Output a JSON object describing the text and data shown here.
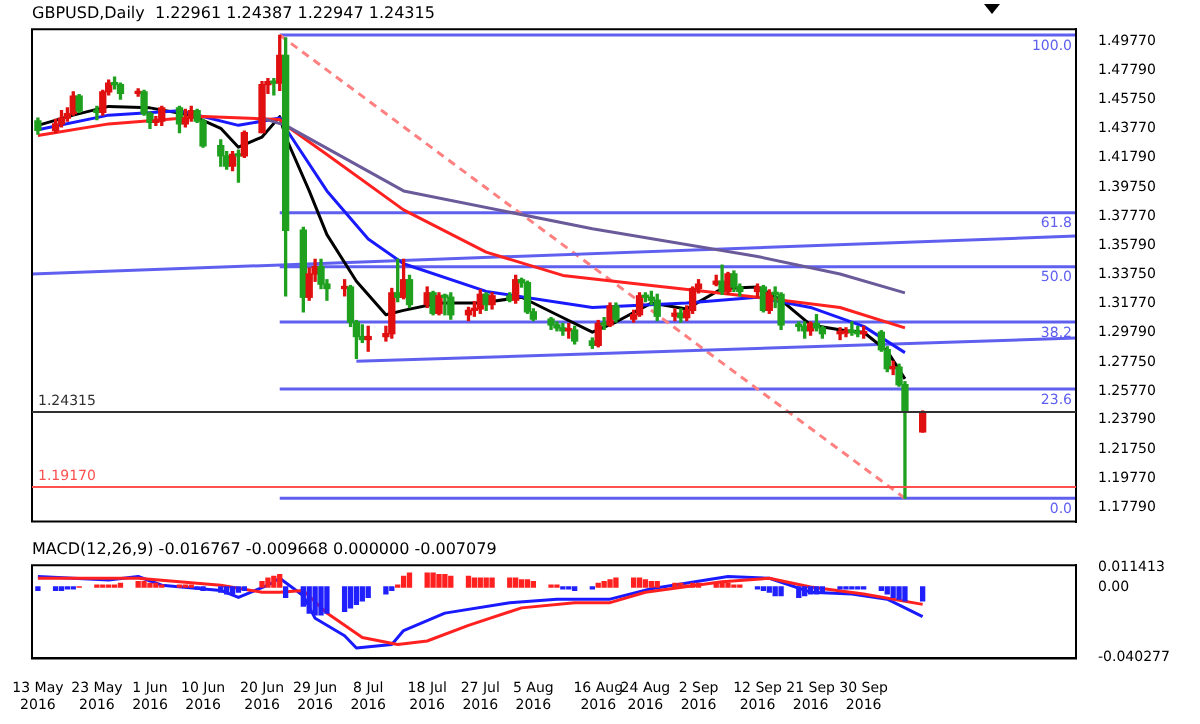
{
  "chart_data": [
    {
      "type": "candlestick",
      "title": "GBPUSD,Daily  1.22961 1.24387 1.22947 1.24315",
      "x": [
        "2016-05-13",
        "2016-05-16",
        "2016-05-17",
        "2016-05-18",
        "2016-05-19",
        "2016-05-20",
        "2016-05-23",
        "2016-05-24",
        "2016-05-25",
        "2016-05-26",
        "2016-05-27",
        "2016-05-30",
        "2016-05-31",
        "2016-06-01",
        "2016-06-02",
        "2016-06-03",
        "2016-06-06",
        "2016-06-07",
        "2016-06-08",
        "2016-06-09",
        "2016-06-10",
        "2016-06-13",
        "2016-06-14",
        "2016-06-15",
        "2016-06-16",
        "2016-06-17",
        "2016-06-20",
        "2016-06-21",
        "2016-06-22",
        "2016-06-23",
        "2016-06-24",
        "2016-06-27",
        "2016-06-28",
        "2016-06-29",
        "2016-06-30",
        "2016-07-01",
        "2016-07-04",
        "2016-07-05",
        "2016-07-06",
        "2016-07-07",
        "2016-07-08",
        "2016-07-11",
        "2016-07-12",
        "2016-07-13",
        "2016-07-14",
        "2016-07-15",
        "2016-07-18",
        "2016-07-19",
        "2016-07-20",
        "2016-07-21",
        "2016-07-22",
        "2016-07-25",
        "2016-07-26",
        "2016-07-27",
        "2016-07-28",
        "2016-07-29",
        "2016-08-01",
        "2016-08-02",
        "2016-08-03",
        "2016-08-04",
        "2016-08-05",
        "2016-08-08",
        "2016-08-09",
        "2016-08-10",
        "2016-08-11",
        "2016-08-12",
        "2016-08-15",
        "2016-08-16",
        "2016-08-17",
        "2016-08-18",
        "2016-08-19",
        "2016-08-22",
        "2016-08-23",
        "2016-08-24",
        "2016-08-25",
        "2016-08-26",
        "2016-08-29",
        "2016-08-30",
        "2016-08-31",
        "2016-09-01",
        "2016-09-02",
        "2016-09-05",
        "2016-09-06",
        "2016-09-07",
        "2016-09-08",
        "2016-09-09",
        "2016-09-12",
        "2016-09-13",
        "2016-09-14",
        "2016-09-15",
        "2016-09-16",
        "2016-09-19",
        "2016-09-20",
        "2016-09-21",
        "2016-09-22",
        "2016-09-23",
        "2016-09-26",
        "2016-09-27",
        "2016-09-28",
        "2016-09-29",
        "2016-09-30",
        "2016-10-03",
        "2016-10-04",
        "2016-10-05",
        "2016-10-06",
        "2016-10-07",
        "2016-10-10"
      ],
      "ohlc": [
        [
          1.443,
          1.445,
          1.434,
          1.4365
        ],
        [
          1.4365,
          1.444,
          1.435,
          1.441
        ],
        [
          1.441,
          1.45,
          1.439,
          1.445
        ],
        [
          1.445,
          1.452,
          1.443,
          1.448
        ],
        [
          1.448,
          1.463,
          1.447,
          1.46
        ],
        [
          1.46,
          1.461,
          1.449,
          1.45
        ],
        [
          1.45,
          1.453,
          1.444,
          1.449
        ],
        [
          1.449,
          1.464,
          1.447,
          1.463
        ],
        [
          1.463,
          1.471,
          1.461,
          1.469
        ],
        [
          1.469,
          1.473,
          1.465,
          1.468
        ],
        [
          1.468,
          1.469,
          1.458,
          1.462
        ],
        [
          1.462,
          1.465,
          1.46,
          1.463
        ],
        [
          1.463,
          1.464,
          1.447,
          1.448
        ],
        [
          1.448,
          1.449,
          1.438,
          1.442
        ],
        [
          1.442,
          1.446,
          1.44,
          1.443
        ],
        [
          1.443,
          1.453,
          1.44,
          1.452
        ],
        [
          1.452,
          1.453,
          1.435,
          1.441
        ],
        [
          1.441,
          1.451,
          1.439,
          1.445
        ],
        [
          1.445,
          1.453,
          1.443,
          1.45
        ],
        [
          1.45,
          1.451,
          1.442,
          1.443
        ],
        [
          1.443,
          1.444,
          1.425,
          1.426
        ],
        [
          1.426,
          1.43,
          1.412,
          1.419
        ],
        [
          1.419,
          1.422,
          1.41,
          1.412
        ],
        [
          1.412,
          1.422,
          1.409,
          1.42
        ],
        [
          1.42,
          1.423,
          1.401,
          1.419
        ],
        [
          1.419,
          1.436,
          1.418,
          1.435
        ],
        [
          1.435,
          1.47,
          1.435,
          1.468
        ],
        [
          1.468,
          1.472,
          1.462,
          1.47
        ],
        [
          1.47,
          1.472,
          1.461,
          1.469
        ],
        [
          1.469,
          1.5018,
          1.464,
          1.488
        ],
        [
          1.488,
          1.5,
          1.323,
          1.368
        ],
        [
          1.368,
          1.37,
          1.312,
          1.322
        ],
        [
          1.322,
          1.342,
          1.32,
          1.338
        ],
        [
          1.338,
          1.348,
          1.333,
          1.343
        ],
        [
          1.343,
          1.348,
          1.328,
          1.331
        ],
        [
          1.331,
          1.334,
          1.32,
          1.328
        ],
        [
          1.328,
          1.334,
          1.323,
          1.329
        ],
        [
          1.329,
          1.33,
          1.302,
          1.305
        ],
        [
          1.305,
          1.306,
          1.28,
          1.295
        ],
        [
          1.295,
          1.303,
          1.291,
          1.293
        ],
        [
          1.293,
          1.302,
          1.285,
          1.295
        ],
        [
          1.295,
          1.302,
          1.292,
          1.297
        ],
        [
          1.297,
          1.328,
          1.294,
          1.325
        ],
        [
          1.325,
          1.348,
          1.319,
          1.322
        ],
        [
          1.322,
          1.348,
          1.321,
          1.334
        ],
        [
          1.334,
          1.337,
          1.315,
          1.317
        ],
        [
          1.317,
          1.329,
          1.315,
          1.325
        ],
        [
          1.325,
          1.326,
          1.31,
          1.311
        ],
        [
          1.311,
          1.325,
          1.31,
          1.323
        ],
        [
          1.323,
          1.324,
          1.31,
          1.322
        ],
        [
          1.322,
          1.325,
          1.307,
          1.31
        ],
        [
          1.31,
          1.315,
          1.306,
          1.313
        ],
        [
          1.313,
          1.319,
          1.309,
          1.314
        ],
        [
          1.314,
          1.327,
          1.311,
          1.324
        ],
        [
          1.324,
          1.325,
          1.313,
          1.317
        ],
        [
          1.317,
          1.325,
          1.314,
          1.323
        ],
        [
          1.323,
          1.325,
          1.319,
          1.32
        ],
        [
          1.32,
          1.337,
          1.318,
          1.334
        ],
        [
          1.334,
          1.335,
          1.329,
          1.332
        ],
        [
          1.332,
          1.333,
          1.311,
          1.312
        ],
        [
          1.312,
          1.314,
          1.306,
          1.307
        ],
        [
          1.307,
          1.308,
          1.3,
          1.303
        ],
        [
          1.303,
          1.305,
          1.299,
          1.301
        ],
        [
          1.301,
          1.304,
          1.296,
          1.299
        ],
        [
          1.299,
          1.304,
          1.294,
          1.2995
        ],
        [
          1.2995,
          1.302,
          1.29,
          1.292
        ],
        [
          1.292,
          1.294,
          1.287,
          1.289
        ],
        [
          1.289,
          1.306,
          1.288,
          1.304
        ],
        [
          1.304,
          1.308,
          1.3,
          1.303
        ],
        [
          1.303,
          1.318,
          1.302,
          1.316
        ],
        [
          1.316,
          1.318,
          1.305,
          1.307
        ],
        [
          1.307,
          1.313,
          1.305,
          1.31
        ],
        [
          1.31,
          1.325,
          1.309,
          1.323
        ],
        [
          1.323,
          1.325,
          1.319,
          1.322
        ],
        [
          1.322,
          1.326,
          1.317,
          1.32
        ],
        [
          1.32,
          1.324,
          1.306,
          1.309
        ],
        [
          1.309,
          1.314,
          1.306,
          1.311
        ],
        [
          1.311,
          1.314,
          1.305,
          1.308
        ],
        [
          1.308,
          1.316,
          1.306,
          1.313
        ],
        [
          1.313,
          1.329,
          1.311,
          1.328
        ],
        [
          1.328,
          1.334,
          1.325,
          1.331
        ],
        [
          1.331,
          1.337,
          1.33,
          1.333
        ],
        [
          1.333,
          1.344,
          1.324,
          1.326
        ],
        [
          1.326,
          1.339,
          1.324,
          1.338
        ],
        [
          1.338,
          1.34,
          1.326,
          1.329
        ],
        [
          1.329,
          1.331,
          1.323,
          1.326
        ],
        [
          1.326,
          1.331,
          1.322,
          1.329
        ],
        [
          1.329,
          1.33,
          1.312,
          1.313
        ],
        [
          1.313,
          1.327,
          1.311,
          1.325
        ],
        [
          1.325,
          1.329,
          1.315,
          1.324
        ],
        [
          1.324,
          1.325,
          1.3,
          1.303
        ],
        [
          1.303,
          1.305,
          1.299,
          1.302
        ],
        [
          1.302,
          1.305,
          1.294,
          1.299
        ],
        [
          1.299,
          1.305,
          1.296,
          1.304
        ],
        [
          1.304,
          1.31,
          1.299,
          1.301
        ],
        [
          1.301,
          1.302,
          1.294,
          1.297
        ],
        [
          1.297,
          1.301,
          1.293,
          1.2975
        ],
        [
          1.2975,
          1.301,
          1.295,
          1.299
        ],
        [
          1.299,
          1.305,
          1.296,
          1.298
        ],
        [
          1.298,
          1.302,
          1.295,
          1.297
        ],
        [
          1.297,
          1.302,
          1.294,
          1.298
        ],
        [
          1.298,
          1.299,
          1.285,
          1.286
        ],
        [
          1.286,
          1.288,
          1.271,
          1.273
        ],
        [
          1.273,
          1.278,
          1.269,
          1.274
        ],
        [
          1.274,
          1.276,
          1.261,
          1.262
        ],
        [
          1.262,
          1.264,
          1.1841,
          1.243
        ],
        [
          1.22961,
          1.24387,
          1.22947,
          1.24315
        ]
      ],
      "colors": [
        "#1fa01f",
        "#e01010",
        "#e01010",
        "#e01010",
        "#e01010",
        "#1fa01f",
        "#1fa01f",
        "#e01010",
        "#e01010",
        "#1fa01f",
        "#1fa01f",
        "#e01010",
        "#1fa01f",
        "#1fa01f",
        "#e01010",
        "#e01010",
        "#1fa01f",
        "#e01010",
        "#e01010",
        "#1fa01f",
        "#1fa01f",
        "#1fa01f",
        "#1fa01f",
        "#e01010",
        "#1fa01f",
        "#e01010",
        "#e01010",
        "#e01010",
        "#1fa01f",
        "#e01010",
        "#1fa01f",
        "#1fa01f",
        "#e01010",
        "#e01010",
        "#1fa01f",
        "#1fa01f",
        "#e01010",
        "#1fa01f",
        "#1fa01f",
        "#1fa01f",
        "#e01010",
        "#e01010",
        "#e01010",
        "#1fa01f",
        "#e01010",
        "#1fa01f",
        "#e01010",
        "#1fa01f",
        "#e01010",
        "#1fa01f",
        "#1fa01f",
        "#e01010",
        "#e01010",
        "#e01010",
        "#1fa01f",
        "#e01010",
        "#1fa01f",
        "#e01010",
        "#1fa01f",
        "#1fa01f",
        "#1fa01f",
        "#1fa01f",
        "#1fa01f",
        "#1fa01f",
        "#e01010",
        "#1fa01f",
        "#1fa01f",
        "#e01010",
        "#1fa01f",
        "#e01010",
        "#1fa01f",
        "#e01010",
        "#e01010",
        "#1fa01f",
        "#1fa01f",
        "#1fa01f",
        "#e01010",
        "#1fa01f",
        "#e01010",
        "#e01010",
        "#e01010",
        "#e01010",
        "#1fa01f",
        "#e01010",
        "#1fa01f",
        "#1fa01f",
        "#e01010",
        "#1fa01f",
        "#e01010",
        "#1fa01f",
        "#1fa01f",
        "#1fa01f",
        "#1fa01f",
        "#e01010",
        "#1fa01f",
        "#1fa01f",
        "#e01010",
        "#e01010",
        "#1fa01f",
        "#1fa01f",
        "#e01010",
        "#1fa01f",
        "#1fa01f",
        "#e01010",
        "#1fa01f",
        "#1fa01f",
        "#e01010"
      ],
      "series": [
        {
          "type": "line",
          "color": "#6a5a9a",
          "x": [
            "2016-06-20",
            "2016-06-24",
            "2016-07-14",
            "2016-08-15",
            "2016-09-12",
            "2016-09-26",
            "2016-10-07"
          ],
          "values": [
            1.445,
            1.44,
            1.395,
            1.369,
            1.35,
            1.338,
            1.325
          ]
        },
        {
          "type": "line",
          "color": "#ff2020",
          "x": [
            "2016-05-13",
            "2016-05-25",
            "2016-06-10",
            "2016-06-23",
            "2016-06-24",
            "2016-07-01",
            "2016-07-14",
            "2016-07-28",
            "2016-08-10",
            "2016-08-25",
            "2016-09-12",
            "2016-09-26",
            "2016-10-07"
          ],
          "values": [
            1.433,
            1.441,
            1.446,
            1.444,
            1.44,
            1.42,
            1.382,
            1.353,
            1.337,
            1.33,
            1.322,
            1.315,
            1.301
          ]
        },
        {
          "type": "line",
          "color": "#1a1aff",
          "x": [
            "2016-05-13",
            "2016-05-25",
            "2016-06-06",
            "2016-06-16",
            "2016-06-23",
            "2016-06-24",
            "2016-07-01",
            "2016-07-08",
            "2016-07-14",
            "2016-07-28",
            "2016-08-15",
            "2016-08-31",
            "2016-09-12",
            "2016-09-21",
            "2016-09-30",
            "2016-10-07"
          ],
          "values": [
            1.437,
            1.447,
            1.45,
            1.44,
            1.445,
            1.438,
            1.395,
            1.362,
            1.345,
            1.326,
            1.315,
            1.318,
            1.322,
            1.315,
            1.302,
            1.284
          ]
        },
        {
          "type": "line",
          "color": "#000000",
          "x": [
            "2016-05-13",
            "2016-05-19",
            "2016-05-25",
            "2016-06-01",
            "2016-06-08",
            "2016-06-13",
            "2016-06-16",
            "2016-06-20",
            "2016-06-23",
            "2016-06-24",
            "2016-06-28",
            "2016-07-01",
            "2016-07-06",
            "2016-07-11",
            "2016-07-14",
            "2016-07-20",
            "2016-07-27",
            "2016-08-03",
            "2016-08-09",
            "2016-08-15",
            "2016-08-19",
            "2016-08-25",
            "2016-08-31",
            "2016-09-06",
            "2016-09-12",
            "2016-09-16",
            "2016-09-21",
            "2016-09-27",
            "2016-09-30",
            "2016-10-04",
            "2016-10-07"
          ],
          "values": [
            1.44,
            1.447,
            1.453,
            1.452,
            1.447,
            1.438,
            1.425,
            1.432,
            1.446,
            1.432,
            1.395,
            1.365,
            1.333,
            1.31,
            1.313,
            1.318,
            1.318,
            1.322,
            1.31,
            1.298,
            1.305,
            1.318,
            1.314,
            1.328,
            1.329,
            1.32,
            1.303,
            1.299,
            1.298,
            1.285,
            1.266
          ]
        },
        {
          "type": "line",
          "color": "#6060f0",
          "x": [
            "2016-05-12",
            "2016-11-05"
          ],
          "values": [
            1.338,
            1.364
          ]
        },
        {
          "type": "line",
          "color": "#6060f0",
          "x": [
            "2016-07-06",
            "2016-11-05"
          ],
          "values": [
            1.278,
            1.294
          ]
        },
        {
          "type": "line",
          "color": "#ff8080",
          "line_style": "dashed",
          "x": [
            "2016-06-23",
            "2016-10-07"
          ],
          "values": [
            1.502,
            1.184
          ]
        },
        {
          "type": "line",
          "color": "#6060f0",
          "name": "100.0",
          "x": [
            "2016-06-23",
            "2016-11-05"
          ],
          "values": [
            1.502,
            1.502
          ]
        },
        {
          "type": "line",
          "color": "#6060f0",
          "name": "61.8",
          "x": [
            "2016-06-23",
            "2016-11-05"
          ],
          "values": [
            1.38,
            1.38
          ]
        },
        {
          "type": "line",
          "color": "#6060f0",
          "name": "50.0",
          "x": [
            "2016-06-23",
            "2016-11-05"
          ],
          "values": [
            1.343,
            1.343
          ]
        },
        {
          "type": "line",
          "color": "#6060f0",
          "name": "38.2",
          "x": [
            "2016-06-23",
            "2016-11-05"
          ],
          "values": [
            1.305,
            1.305
          ]
        },
        {
          "type": "line",
          "color": "#6060f0",
          "name": "23.6",
          "x": [
            "2016-06-23",
            "2016-11-05"
          ],
          "values": [
            1.259,
            1.259
          ]
        },
        {
          "type": "line",
          "color": "#6060f0",
          "name": "0.0",
          "x": [
            "2016-06-23",
            "2016-11-05"
          ],
          "values": [
            1.184,
            1.184
          ]
        }
      ],
      "xlim": [
        "2016-05-12",
        "2016-11-05"
      ],
      "ylim": [
        1.168,
        1.506
      ],
      "yticks": [
        {
          "value": 1.1779,
          "label": "1.17790"
        },
        {
          "value": 1.1977,
          "label": "1.19770"
        },
        {
          "value": 1.2175,
          "label": "1.21750"
        },
        {
          "value": 1.2379,
          "label": "1.23790"
        },
        {
          "value": 1.2577,
          "label": "1.25770"
        },
        {
          "value": 1.2775,
          "label": "1.27750"
        },
        {
          "value": 1.2979,
          "label": "1.29790"
        },
        {
          "value": 1.3177,
          "label": "1.31770"
        },
        {
          "value": 1.3375,
          "label": "1.33750"
        },
        {
          "value": 1.3579,
          "label": "1.35790"
        },
        {
          "value": 1.3777,
          "label": "1.37770"
        },
        {
          "value": 1.3975,
          "label": "1.39750"
        },
        {
          "value": 1.4179,
          "label": "1.41790"
        },
        {
          "value": 1.4377,
          "label": "1.43770"
        },
        {
          "value": 1.4575,
          "label": "1.45750"
        },
        {
          "value": 1.4779,
          "label": "1.47790"
        },
        {
          "value": 1.4977,
          "label": "1.49770"
        }
      ],
      "ref_lines": [
        {
          "axis": "y",
          "value": 1.24315,
          "label": "1.24315",
          "color": "#303030"
        },
        {
          "axis": "y",
          "value": 1.1917,
          "label": "1.19170",
          "color": "#ff5050"
        }
      ],
      "tick_labels": "y"
    },
    {
      "type": "bar",
      "title": "MACD(12,26,9) -0.016767 -0.009668 0.000000 -0.007079",
      "x": [
        "2016-05-13",
        "2016-05-16",
        "2016-05-17",
        "2016-05-18",
        "2016-05-19",
        "2016-05-20",
        "2016-05-23",
        "2016-05-24",
        "2016-05-25",
        "2016-05-26",
        "2016-05-27",
        "2016-05-30",
        "2016-05-31",
        "2016-06-01",
        "2016-06-02",
        "2016-06-03",
        "2016-06-06",
        "2016-06-07",
        "2016-06-08",
        "2016-06-09",
        "2016-06-10",
        "2016-06-13",
        "2016-06-14",
        "2016-06-15",
        "2016-06-16",
        "2016-06-17",
        "2016-06-20",
        "2016-06-21",
        "2016-06-22",
        "2016-06-23",
        "2016-06-24",
        "2016-06-27",
        "2016-06-28",
        "2016-06-29",
        "2016-06-30",
        "2016-07-01",
        "2016-07-04",
        "2016-07-05",
        "2016-07-06",
        "2016-07-07",
        "2016-07-08",
        "2016-07-11",
        "2016-07-12",
        "2016-07-13",
        "2016-07-14",
        "2016-07-15",
        "2016-07-18",
        "2016-07-19",
        "2016-07-20",
        "2016-07-21",
        "2016-07-22",
        "2016-07-25",
        "2016-07-26",
        "2016-07-27",
        "2016-07-28",
        "2016-07-29",
        "2016-08-01",
        "2016-08-02",
        "2016-08-03",
        "2016-08-04",
        "2016-08-05",
        "2016-08-08",
        "2016-08-09",
        "2016-08-10",
        "2016-08-11",
        "2016-08-12",
        "2016-08-15",
        "2016-08-16",
        "2016-08-17",
        "2016-08-18",
        "2016-08-19",
        "2016-08-22",
        "2016-08-23",
        "2016-08-24",
        "2016-08-25",
        "2016-08-26",
        "2016-08-29",
        "2016-08-30",
        "2016-08-31",
        "2016-09-01",
        "2016-09-02",
        "2016-09-05",
        "2016-09-06",
        "2016-09-07",
        "2016-09-08",
        "2016-09-09",
        "2016-09-12",
        "2016-09-13",
        "2016-09-14",
        "2016-09-15",
        "2016-09-16",
        "2016-09-19",
        "2016-09-20",
        "2016-09-21",
        "2016-09-22",
        "2016-09-23",
        "2016-09-26",
        "2016-09-27",
        "2016-09-28",
        "2016-09-29",
        "2016-09-30",
        "2016-10-03",
        "2016-10-04",
        "2016-10-05",
        "2016-10-06",
        "2016-10-07",
        "2016-10-10"
      ],
      "values": [
        -0.002,
        -0.002,
        -0.002,
        -0.001,
        -0.001,
        0,
        0.001,
        0.001,
        0.001,
        0.001,
        0.002,
        0.003,
        0.003,
        0.002,
        0.002,
        0.001,
        0.001,
        0.001,
        0.001,
        -0.001,
        -0.002,
        -0.003,
        -0.004,
        -0.004,
        -0.003,
        -0.002,
        0.003,
        0.005,
        0.006,
        0.007,
        -0.006,
        -0.011,
        -0.015,
        -0.016,
        -0.016,
        -0.015,
        -0.014,
        -0.012,
        -0.01,
        -0.008,
        -0.006,
        -0.004,
        -0.002,
        0.001,
        0.006,
        0.008,
        0.008,
        0.008,
        0.007,
        0.007,
        0.006,
        0.006,
        0.005,
        0.005,
        0.005,
        0.005,
        0.005,
        0.005,
        0.004,
        0.004,
        0.003,
        0.001,
        0.001,
        -0.001,
        -0.001,
        -0.002,
        -0.001,
        0.002,
        0.003,
        0.004,
        0.005,
        0.005,
        0.005,
        0.004,
        0.003,
        0.003,
        0.002,
        0.002,
        0.001,
        0.002,
        0.002,
        0.002,
        0.002,
        0.002,
        0.001,
        0.001,
        -0.001,
        -0.002,
        -0.003,
        -0.005,
        -0.005,
        -0.006,
        -0.005,
        -0.004,
        -0.004,
        -0.003,
        -0.001,
        -0.001,
        -0.001,
        -0.001,
        -0.001,
        -0.002,
        -0.004,
        -0.006,
        -0.007,
        -0.008,
        -0.008
      ],
      "colors": [
        "#2020ff",
        "#2020ff",
        "#2020ff",
        "#2020ff",
        "#2020ff",
        "#ff2020",
        "#ff2020",
        "#ff2020",
        "#ff2020",
        "#ff2020",
        "#ff2020",
        "#ff2020",
        "#ff2020",
        "#ff2020",
        "#ff2020",
        "#ff2020",
        "#ff2020",
        "#ff2020",
        "#ff2020",
        "#2020ff",
        "#2020ff",
        "#2020ff",
        "#2020ff",
        "#2020ff",
        "#2020ff",
        "#2020ff",
        "#ff2020",
        "#ff2020",
        "#ff2020",
        "#ff2020",
        "#2020ff",
        "#2020ff",
        "#2020ff",
        "#2020ff",
        "#2020ff",
        "#2020ff",
        "#2020ff",
        "#2020ff",
        "#2020ff",
        "#2020ff",
        "#2020ff",
        "#2020ff",
        "#2020ff",
        "#ff2020",
        "#ff2020",
        "#ff2020",
        "#ff2020",
        "#ff2020",
        "#ff2020",
        "#ff2020",
        "#ff2020",
        "#ff2020",
        "#ff2020",
        "#ff2020",
        "#ff2020",
        "#ff2020",
        "#ff2020",
        "#ff2020",
        "#ff2020",
        "#ff2020",
        "#ff2020",
        "#ff2020",
        "#ff2020",
        "#2020ff",
        "#2020ff",
        "#2020ff",
        "#2020ff",
        "#ff2020",
        "#ff2020",
        "#ff2020",
        "#ff2020",
        "#ff2020",
        "#ff2020",
        "#ff2020",
        "#ff2020",
        "#ff2020",
        "#ff2020",
        "#ff2020",
        "#ff2020",
        "#ff2020",
        "#ff2020",
        "#ff2020",
        "#ff2020",
        "#ff2020",
        "#ff2020",
        "#ff2020",
        "#2020ff",
        "#2020ff",
        "#2020ff",
        "#2020ff",
        "#2020ff",
        "#2020ff",
        "#2020ff",
        "#2020ff",
        "#2020ff",
        "#2020ff",
        "#2020ff",
        "#2020ff",
        "#2020ff",
        "#2020ff",
        "#2020ff",
        "#2020ff",
        "#2020ff",
        "#2020ff",
        "#2020ff",
        "#2020ff",
        "#2020ff"
      ],
      "series": [
        {
          "type": "line",
          "color": "#ff2020",
          "x": [
            "2016-05-13",
            "2016-05-30",
            "2016-06-13",
            "2016-06-20",
            "2016-06-23",
            "2016-06-27",
            "2016-07-01",
            "2016-07-07",
            "2016-07-13",
            "2016-07-18",
            "2016-07-25",
            "2016-08-03",
            "2016-08-12",
            "2016-08-18",
            "2016-08-24",
            "2016-09-06",
            "2016-09-14",
            "2016-09-21",
            "2016-09-30",
            "2016-10-10"
          ],
          "values": [
            0.005,
            0.005,
            0.001,
            -0.003,
            -0.003,
            -0.002,
            -0.015,
            -0.029,
            -0.033,
            -0.031,
            -0.022,
            -0.012,
            -0.009,
            -0.009,
            -0.003,
            0.003,
            0.005,
            0,
            -0.004,
            -0.01
          ]
        },
        {
          "type": "line",
          "color": "#1a1aff",
          "x": [
            "2016-05-13",
            "2016-05-25",
            "2016-05-30",
            "2016-06-03",
            "2016-06-13",
            "2016-06-16",
            "2016-06-21",
            "2016-06-23",
            "2016-06-27",
            "2016-06-29",
            "2016-07-04",
            "2016-07-06",
            "2016-07-12",
            "2016-07-14",
            "2016-07-21",
            "2016-08-01",
            "2016-08-09",
            "2016-08-18",
            "2016-08-25",
            "2016-09-07",
            "2016-09-14",
            "2016-09-21",
            "2016-09-28",
            "2016-10-04",
            "2016-10-10"
          ],
          "values": [
            0.006,
            0.004,
            0.006,
            0.001,
            -0.002,
            -0.006,
            0.001,
            0.005,
            -0.005,
            -0.018,
            -0.028,
            -0.035,
            -0.033,
            -0.025,
            -0.015,
            -0.009,
            -0.007,
            -0.007,
            -0.001,
            0.006,
            0.005,
            -0.003,
            -0.004,
            -0.007,
            -0.017
          ]
        }
      ],
      "xlim": [
        "2016-05-12",
        "2016-11-05"
      ],
      "xticks": [
        {
          "value": "2016-05-13",
          "label": "13 May 2016"
        },
        {
          "value": "2016-05-23",
          "label": "23 May 2016"
        },
        {
          "value": "2016-06-01",
          "label": "1 Jun 2016"
        },
        {
          "value": "2016-06-10",
          "label": "10 Jun 2016"
        },
        {
          "value": "2016-06-20",
          "label": "20 Jun 2016"
        },
        {
          "value": "2016-06-29",
          "label": "29 Jun 2016"
        },
        {
          "value": "2016-07-08",
          "label": "8 Jul 2016"
        },
        {
          "value": "2016-07-18",
          "label": "18 Jul 2016"
        },
        {
          "value": "2016-07-27",
          "label": "27 Jul 2016"
        },
        {
          "value": "2016-08-05",
          "label": "5 Aug 2016"
        },
        {
          "value": "2016-08-16",
          "label": "16 Aug 2016"
        },
        {
          "value": "2016-08-24",
          "label": "24 Aug 2016"
        },
        {
          "value": "2016-09-02",
          "label": "2 Sep 2016"
        },
        {
          "value": "2016-09-12",
          "label": "12 Sep 2016"
        },
        {
          "value": "2016-09-21",
          "label": "21 Sep 2016"
        },
        {
          "value": "2016-09-30",
          "label": "30 Sep 2016"
        }
      ],
      "ylim": [
        -0.041,
        0.0125
      ],
      "yticks": [
        {
          "value": -0.040277,
          "label": "-0.040277"
        },
        {
          "value": 0,
          "label": "0.00"
        },
        {
          "value": 0.011413,
          "label": "0.011413"
        }
      ]
    }
  ]
}
